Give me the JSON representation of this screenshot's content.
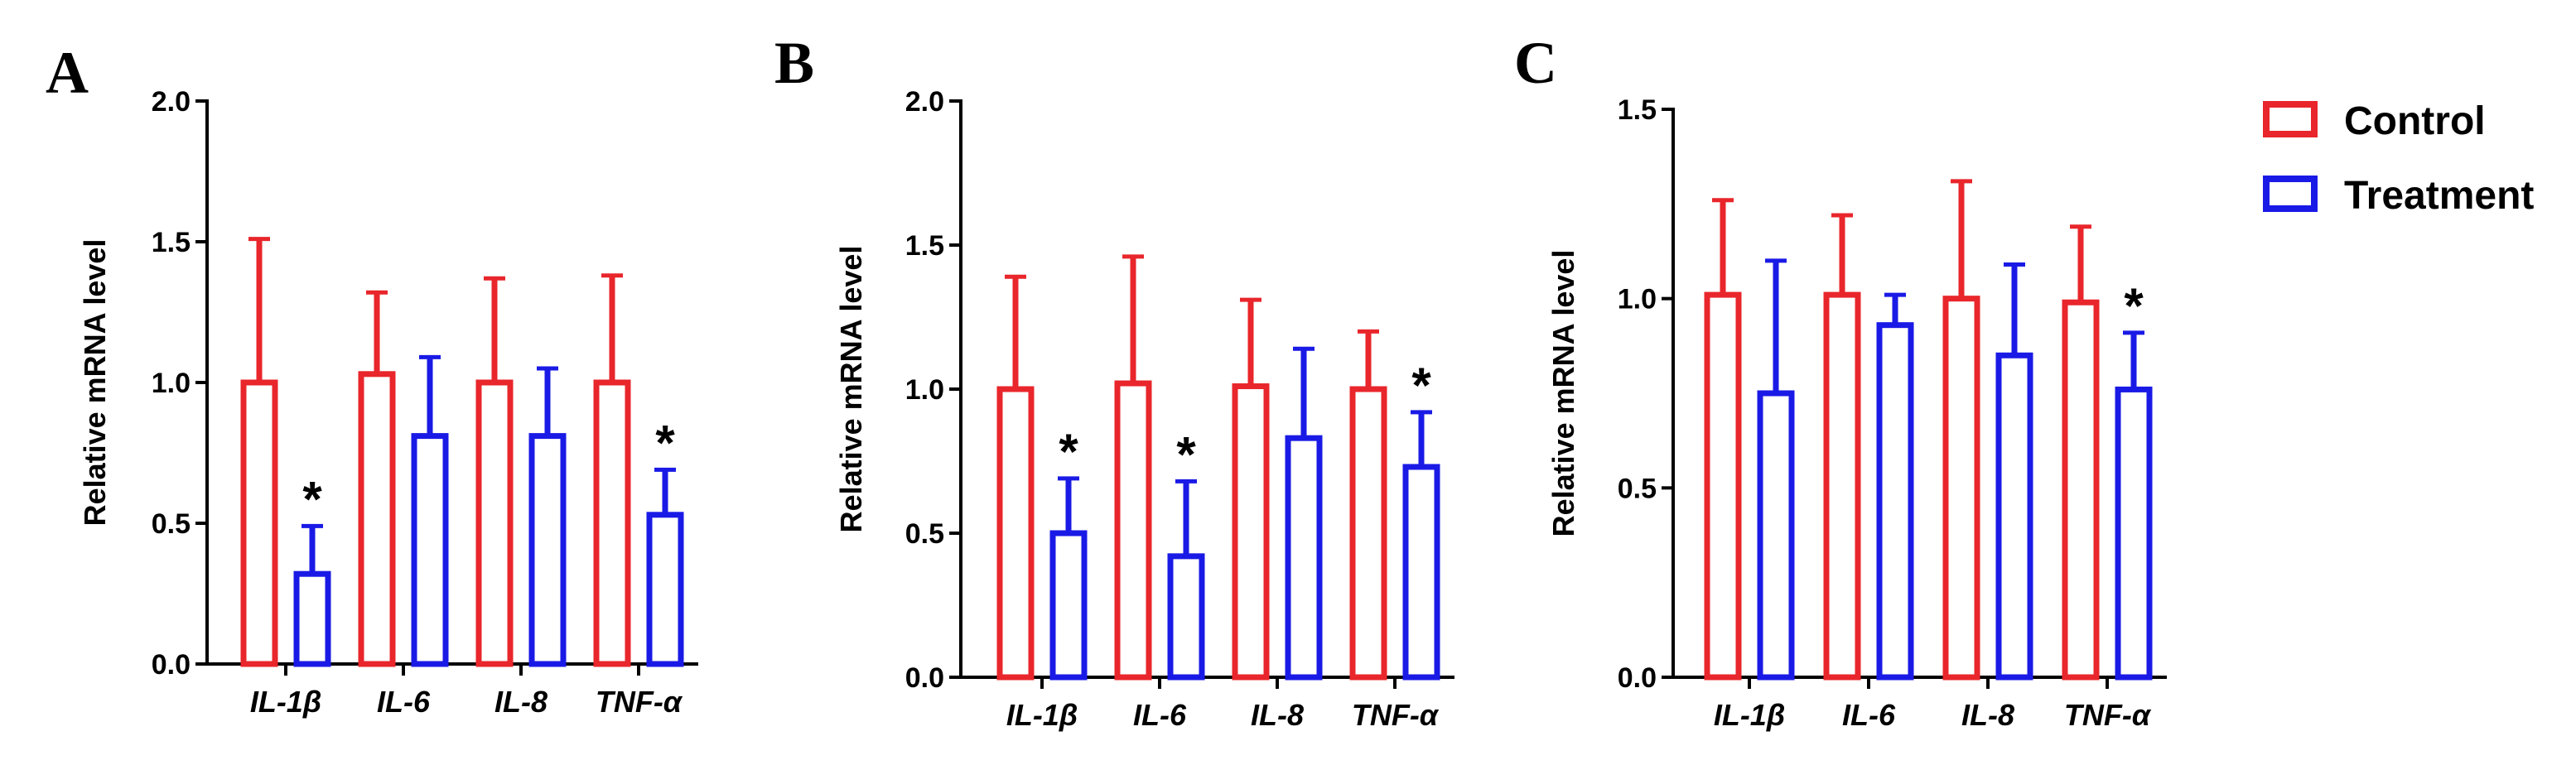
{
  "chart_data": [
    {
      "type": "bar",
      "panel": "A",
      "ylabel": "Relative mRNA level",
      "ylim": [
        0,
        2.0
      ],
      "yticks": [
        "0.0",
        "0.5",
        "1.0",
        "1.5",
        "2.0"
      ],
      "ytick_values": [
        0,
        0.5,
        1.0,
        1.5,
        2.0
      ],
      "categories": [
        "IL-1β",
        "IL-6",
        "IL-8",
        "TNF-α"
      ],
      "series": [
        {
          "name": "Control",
          "values": [
            1.0,
            1.03,
            1.0,
            1.0
          ],
          "errors": [
            0.51,
            0.29,
            0.37,
            0.38
          ]
        },
        {
          "name": "Treatment",
          "values": [
            0.32,
            0.81,
            0.81,
            0.53
          ],
          "errors": [
            0.17,
            0.28,
            0.24,
            0.16
          ]
        }
      ],
      "significance": [
        {
          "category": "IL-1β",
          "series": "Treatment",
          "label": "*"
        },
        {
          "category": "TNF-α",
          "series": "Treatment",
          "label": "*"
        }
      ]
    },
    {
      "type": "bar",
      "panel": "B",
      "ylabel": "Relative mRNA level",
      "ylim": [
        0,
        2.0
      ],
      "yticks": [
        "0.0",
        "0.5",
        "1.0",
        "1.5",
        "2.0"
      ],
      "ytick_values": [
        0,
        0.5,
        1.0,
        1.5,
        2.0
      ],
      "categories": [
        "IL-1β",
        "IL-6",
        "IL-8",
        "TNF-α"
      ],
      "series": [
        {
          "name": "Control",
          "values": [
            1.0,
            1.02,
            1.01,
            1.0
          ],
          "errors": [
            0.39,
            0.44,
            0.3,
            0.2
          ]
        },
        {
          "name": "Treatment",
          "values": [
            0.5,
            0.42,
            0.83,
            0.73
          ],
          "errors": [
            0.19,
            0.26,
            0.31,
            0.19
          ]
        }
      ],
      "significance": [
        {
          "category": "IL-1β",
          "series": "Treatment",
          "label": "*"
        },
        {
          "category": "IL-6",
          "series": "Treatment",
          "label": "*"
        },
        {
          "category": "TNF-α",
          "series": "Treatment",
          "label": "*"
        }
      ]
    },
    {
      "type": "bar",
      "panel": "C",
      "ylabel": "Relative mRNA level",
      "ylim": [
        0,
        1.5
      ],
      "yticks": [
        "0.0",
        "0.5",
        "1.0",
        "1.5"
      ],
      "ytick_values": [
        0,
        0.5,
        1.0,
        1.5
      ],
      "categories": [
        "IL-1β",
        "IL-6",
        "IL-8",
        "TNF-α"
      ],
      "series": [
        {
          "name": "Control",
          "values": [
            1.01,
            1.01,
            1.0,
            0.99
          ],
          "errors": [
            0.25,
            0.21,
            0.31,
            0.2
          ]
        },
        {
          "name": "Treatment",
          "values": [
            0.75,
            0.93,
            0.85,
            0.76
          ],
          "errors": [
            0.35,
            0.08,
            0.24,
            0.15
          ]
        }
      ],
      "significance": [
        {
          "category": "TNF-α",
          "series": "Treatment",
          "label": "*"
        }
      ]
    }
  ],
  "legend": [
    {
      "label": "Control",
      "color": "#e8262b"
    },
    {
      "label": "Treatment",
      "color": "#1a1ae6"
    }
  ],
  "colors": {
    "control": "#e8262b",
    "treatment": "#1a1ae6",
    "axis": "#000000"
  }
}
